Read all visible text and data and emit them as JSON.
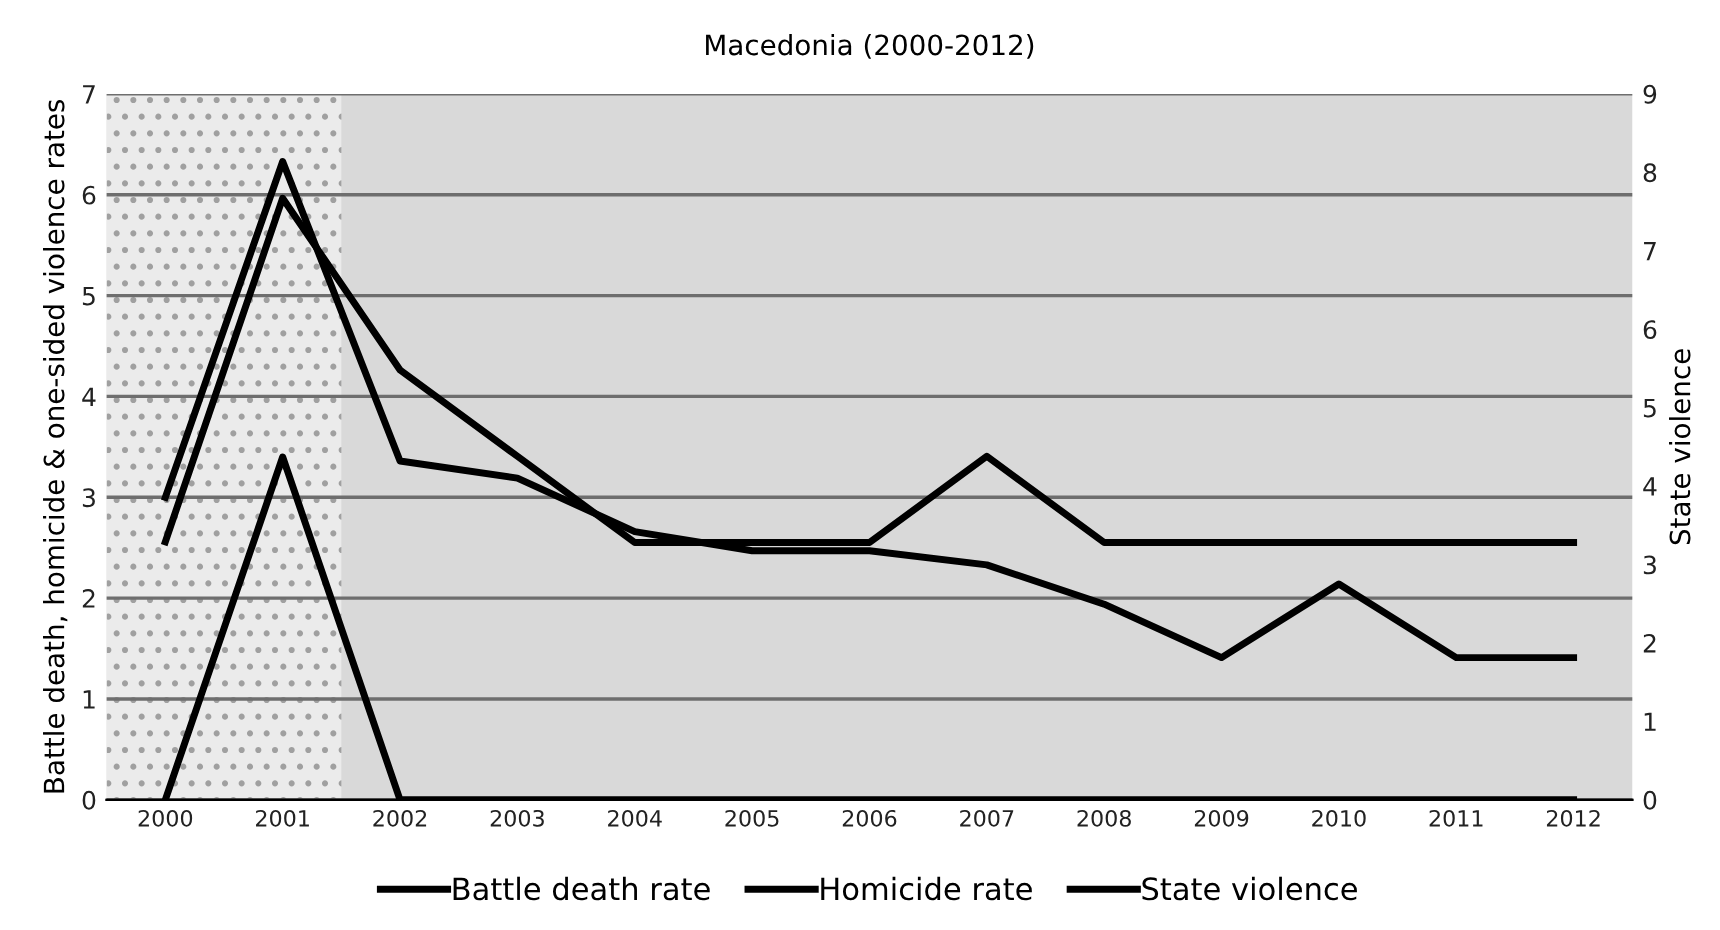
{
  "chart_data": {
    "type": "line",
    "title": "Macedonia (2000-2012)",
    "ylabel": "Battle death, homicide & one-sided violence rates",
    "y2label": "State violence",
    "categories": [
      "2000",
      "2001",
      "2002",
      "2003",
      "2004",
      "2005",
      "2006",
      "2007",
      "2008",
      "2009",
      "2010",
      "2011",
      "2012"
    ],
    "series": [
      {
        "name": "Battle death rate",
        "color": "#000000",
        "values": [
          0,
          3.4,
          0,
          0,
          0,
          0,
          0,
          0,
          0,
          0,
          0,
          0,
          0
        ]
      },
      {
        "name": "Homicide rate",
        "color": "#000000",
        "values": [
          3.0,
          6.33,
          3.36,
          3.19,
          2.66,
          2.47,
          2.47,
          2.33,
          1.94,
          1.41,
          2.14,
          1.41,
          1.41
        ]
      },
      {
        "name": "State violence",
        "color": "#000000",
        "axis": "y2",
        "values": [
          3.29,
          7.67,
          5.48,
          4.38,
          3.28,
          3.28,
          3.28,
          4.38,
          3.28,
          3.28,
          3.28,
          3.28,
          3.28
        ]
      }
    ],
    "ylim": [
      0,
      7
    ],
    "yticks": [
      0,
      1,
      2,
      3,
      4,
      5,
      6,
      7
    ],
    "y2lim": [
      0,
      9
    ],
    "y2ticks": [
      0,
      1,
      2,
      3,
      4,
      5,
      6,
      7,
      8,
      9
    ],
    "bands": [
      {
        "axis": "x",
        "from": "2000",
        "to": "2001",
        "color": "#ebebeb"
      }
    ],
    "grid": "y",
    "legend": "bottom",
    "marker": "none",
    "line_style": "solid"
  }
}
